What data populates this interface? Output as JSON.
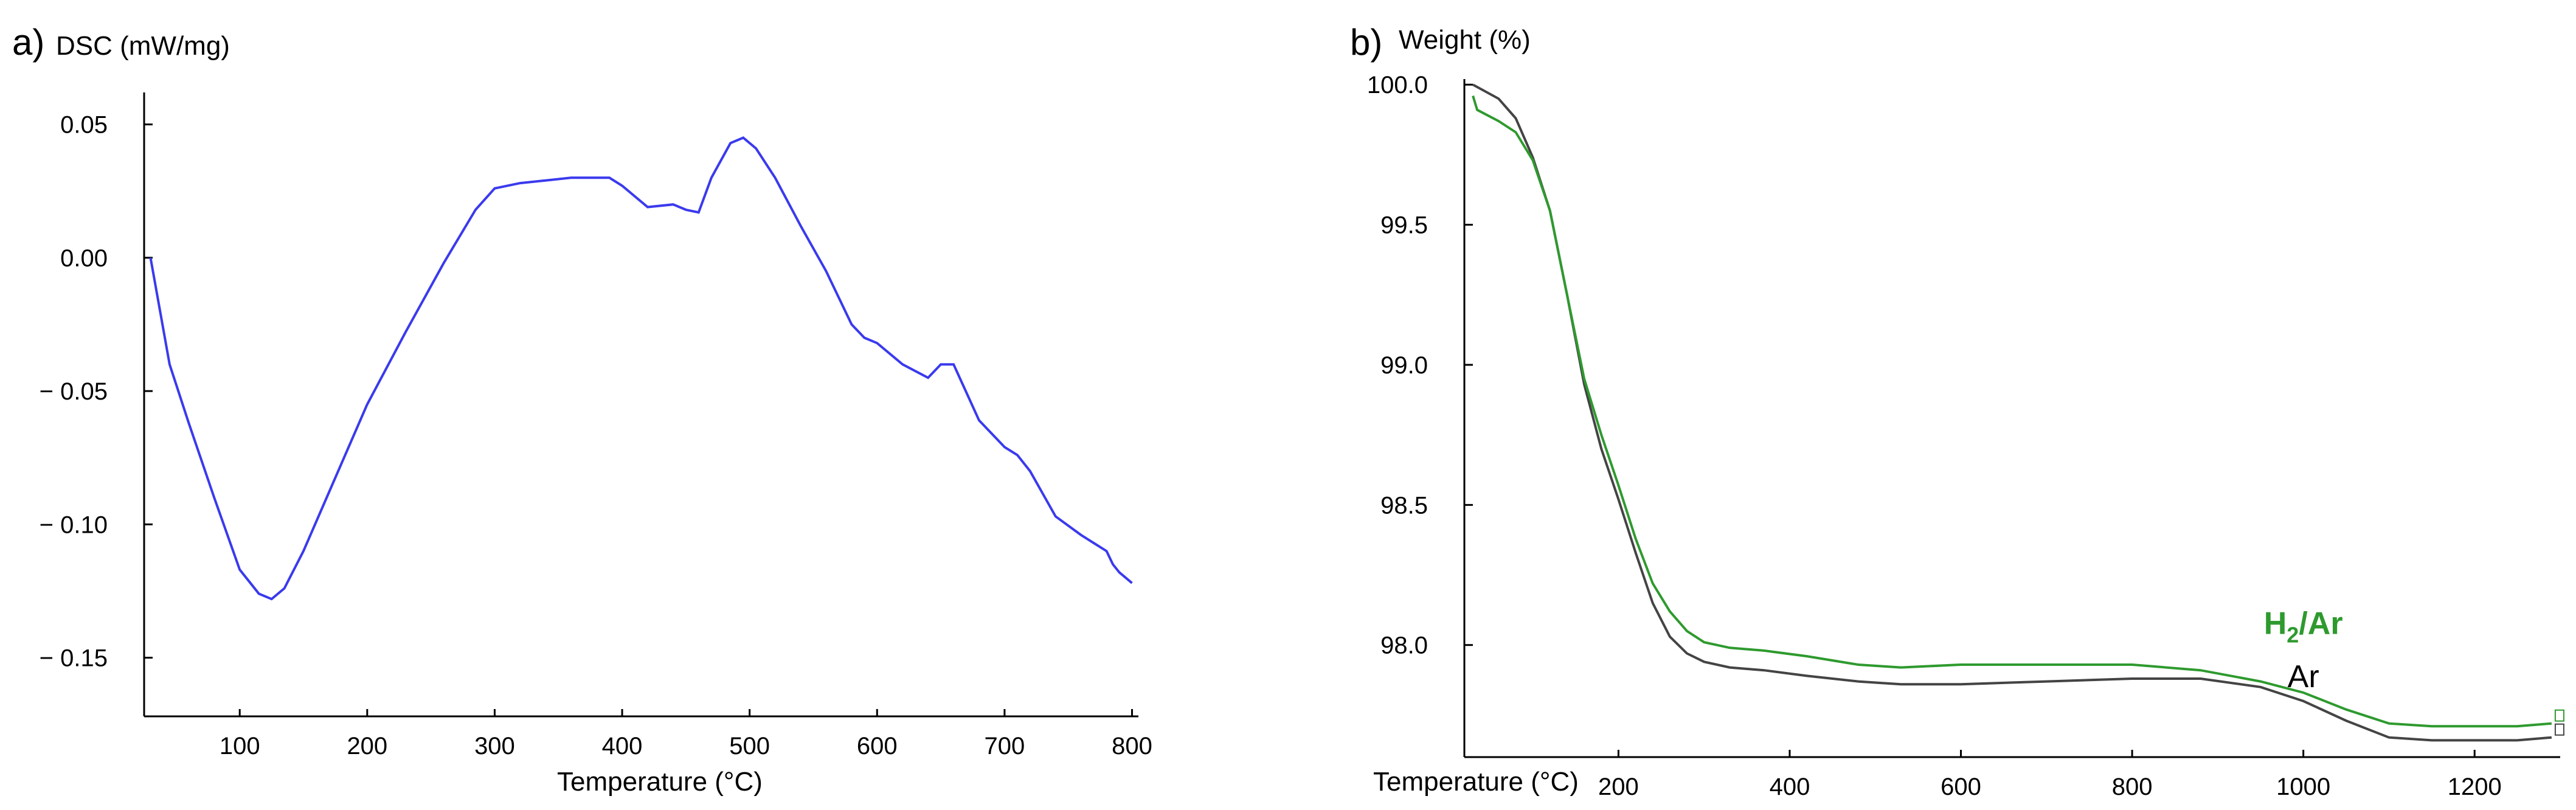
{
  "chart_data": [
    {
      "panel": "a)",
      "type": "line",
      "title": "",
      "ylabel": "DSC (mW/mg)",
      "xlabel": "Temperature (°C)",
      "xlim": [
        25,
        805
      ],
      "ylim": [
        -0.172,
        0.062
      ],
      "xticks": [
        100,
        200,
        300,
        400,
        500,
        600,
        700,
        800
      ],
      "yticks": [
        {
          "value": 0.05,
          "label": "0.05"
        },
        {
          "value": 0.0,
          "label": "0.00"
        },
        {
          "value": -0.05,
          "label": "− 0.05"
        },
        {
          "value": -0.1,
          "label": "− 0.10"
        },
        {
          "value": -0.15,
          "label": "− 0.15"
        }
      ],
      "grid": false,
      "series": [
        {
          "name": "DSC",
          "color": "#3a3aee",
          "x": [
            30,
            45,
            60,
            80,
            100,
            115,
            125,
            135,
            150,
            170,
            200,
            230,
            260,
            285,
            300,
            320,
            340,
            360,
            375,
            390,
            400,
            420,
            440,
            450,
            460,
            470,
            485,
            495,
            505,
            520,
            540,
            560,
            580,
            590,
            600,
            620,
            640,
            650,
            660,
            680,
            700,
            710,
            720,
            740,
            760,
            770,
            780,
            785,
            790,
            800
          ],
          "values": [
            0.0,
            -0.04,
            -0.062,
            -0.09,
            -0.117,
            -0.126,
            -0.128,
            -0.124,
            -0.11,
            -0.088,
            -0.055,
            -0.028,
            -0.002,
            0.018,
            0.026,
            0.028,
            0.029,
            0.03,
            0.03,
            0.03,
            0.027,
            0.019,
            0.02,
            0.018,
            0.017,
            0.03,
            0.043,
            0.045,
            0.041,
            0.03,
            0.012,
            -0.005,
            -0.025,
            -0.03,
            -0.032,
            -0.04,
            -0.045,
            -0.04,
            -0.04,
            -0.061,
            -0.071,
            -0.074,
            -0.08,
            -0.097,
            -0.104,
            -0.107,
            -0.11,
            -0.115,
            -0.118,
            -0.122
          ]
        }
      ]
    },
    {
      "panel": "b)",
      "type": "line",
      "title": "",
      "ylabel": "Weight (%)",
      "xlabel": "Temperature (°C)",
      "xlim": [
        20,
        1300
      ],
      "ylim": [
        97.6,
        100.02
      ],
      "xticks": [
        200,
        400,
        600,
        800,
        1000,
        1200
      ],
      "yticks": [
        {
          "value": 100.0,
          "label": "100.0"
        },
        {
          "value": 99.5,
          "label": "99.5"
        },
        {
          "value": 99.0,
          "label": "99.0"
        },
        {
          "value": 98.5,
          "label": "98.5"
        },
        {
          "value": 98.0,
          "label": "98.0"
        }
      ],
      "grid": false,
      "series": [
        {
          "name": "H2/Ar",
          "label_main": "H",
          "label_sub": "2",
          "label_rest": "/Ar",
          "color": "#2e9a2e",
          "label_at": [
            1000,
            98.04
          ],
          "x": [
            30,
            35,
            60,
            80,
            100,
            120,
            140,
            160,
            180,
            200,
            220,
            240,
            260,
            280,
            300,
            330,
            370,
            420,
            480,
            530,
            600,
            700,
            800,
            880,
            950,
            1000,
            1050,
            1100,
            1150,
            1200,
            1250,
            1290
          ],
          "values": [
            99.96,
            99.91,
            99.87,
            99.83,
            99.73,
            99.55,
            99.25,
            98.95,
            98.75,
            98.57,
            98.38,
            98.22,
            98.12,
            98.05,
            98.01,
            97.99,
            97.98,
            97.96,
            97.93,
            97.92,
            97.93,
            97.93,
            97.93,
            97.91,
            97.87,
            97.83,
            97.77,
            97.72,
            97.71,
            97.71,
            97.71,
            97.72
          ]
        },
        {
          "name": "Ar",
          "color": "#444444",
          "label_at": [
            1000,
            97.85
          ],
          "x": [
            30,
            60,
            80,
            100,
            120,
            140,
            160,
            180,
            200,
            220,
            240,
            260,
            280,
            300,
            330,
            370,
            420,
            480,
            530,
            600,
            700,
            800,
            880,
            950,
            1000,
            1050,
            1100,
            1150,
            1200,
            1250,
            1290
          ],
          "values": [
            100.0,
            99.95,
            99.88,
            99.74,
            99.55,
            99.25,
            98.93,
            98.7,
            98.52,
            98.33,
            98.15,
            98.03,
            97.97,
            97.94,
            97.92,
            97.91,
            97.89,
            97.87,
            97.86,
            97.86,
            97.87,
            97.88,
            97.88,
            97.85,
            97.8,
            97.73,
            97.67,
            97.66,
            97.66,
            97.66,
            97.67
          ]
        }
      ]
    }
  ]
}
